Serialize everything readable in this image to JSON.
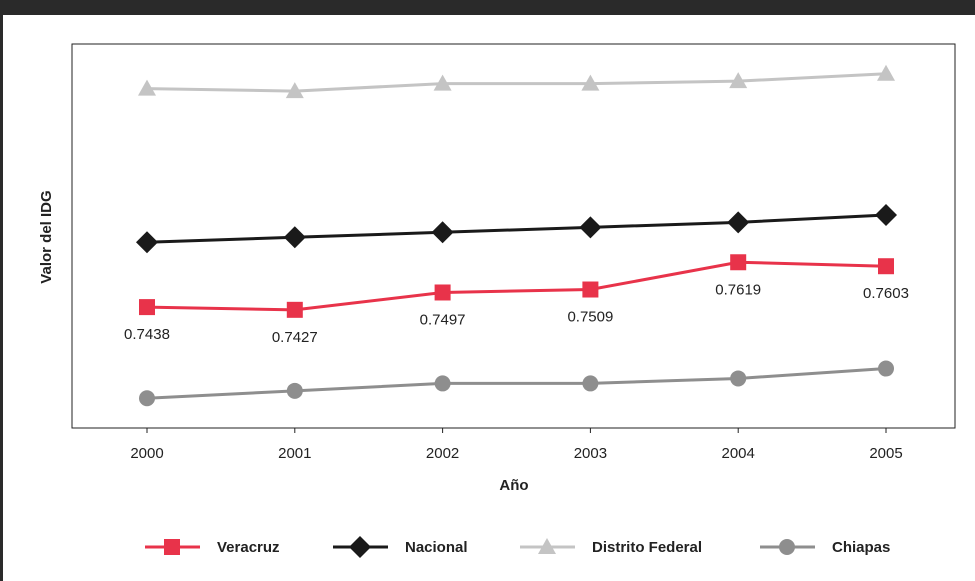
{
  "chart_data": {
    "type": "line",
    "title": "",
    "xlabel": "Año",
    "ylabel": "Valor del IDG",
    "categories": [
      "2000",
      "2001",
      "2002",
      "2003",
      "2004",
      "2005"
    ],
    "ylim": [
      0.695,
      0.85
    ],
    "grid": false,
    "legend_position": "bottom",
    "series": [
      {
        "name": "Veracruz",
        "values": [
          0.7438,
          0.7427,
          0.7497,
          0.7509,
          0.7619,
          0.7603
        ],
        "data_labels": [
          "0.7438",
          "0.7427",
          "0.7497",
          "0.7509",
          "0.7619",
          "0.7603"
        ],
        "color": "#e8334a",
        "marker": "square"
      },
      {
        "name": "Nacional",
        "values": [
          0.77,
          0.772,
          0.774,
          0.776,
          0.778,
          0.781
        ],
        "color": "#1a1a1a",
        "marker": "diamond"
      },
      {
        "name": "Distrito Federal",
        "values": [
          0.832,
          0.831,
          0.834,
          0.834,
          0.835,
          0.838
        ],
        "color": "#c4c4c4",
        "marker": "triangle"
      },
      {
        "name": "Chiapas",
        "values": [
          0.707,
          0.71,
          0.713,
          0.713,
          0.715,
          0.719
        ],
        "color": "#8e8e8e",
        "marker": "circle"
      }
    ]
  }
}
